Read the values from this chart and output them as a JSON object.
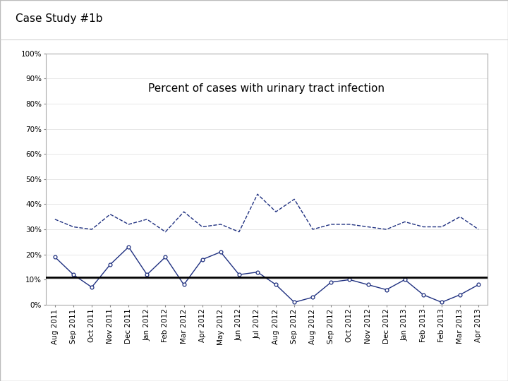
{
  "title": "Case Study #1b",
  "chart_title": "Percent of cases with urinary tract infection",
  "x_labels": [
    "Aug 2011",
    "Sep 2011",
    "Oct 2011",
    "Nov 2011",
    "Dec 2011",
    "Jan 2012",
    "Feb 2012",
    "Mar 2012",
    "Apr 2012",
    "May 2012",
    "Jun 2012",
    "Jul 2012",
    "Aug 2012",
    "Sep 2012",
    "Aug 2012",
    "Sep 2012",
    "Oct 2012",
    "Nov 2012",
    "Dec 2012",
    "Jan 2013",
    "Feb 2013",
    "Feb 2013",
    "Mar 2013",
    "Apr 2013"
  ],
  "solid_line_y": [
    0.19,
    0.12,
    0.07,
    0.16,
    0.23,
    0.12,
    0.19,
    0.08,
    0.18,
    0.21,
    0.12,
    0.13,
    0.08,
    0.01,
    0.03,
    0.09,
    0.1,
    0.08,
    0.06,
    0.1,
    0.04,
    0.01,
    0.04,
    0.08
  ],
  "dashed_line_y": [
    0.34,
    0.31,
    0.3,
    0.36,
    0.32,
    0.34,
    0.29,
    0.37,
    0.31,
    0.32,
    0.29,
    0.44,
    0.37,
    0.42,
    0.3,
    0.32,
    0.32,
    0.31,
    0.3,
    0.33,
    0.31,
    0.31,
    0.35,
    0.3
  ],
  "baseline_y": 0.11,
  "line_color": "#1f3080",
  "baseline_color": "#000000",
  "ylim": [
    0.0,
    1.0
  ],
  "yticks": [
    0.0,
    0.1,
    0.2,
    0.3,
    0.4,
    0.5,
    0.6,
    0.7,
    0.8,
    0.9,
    1.0
  ],
  "background_color": "#ffffff",
  "outer_bg": "#ffffff"
}
